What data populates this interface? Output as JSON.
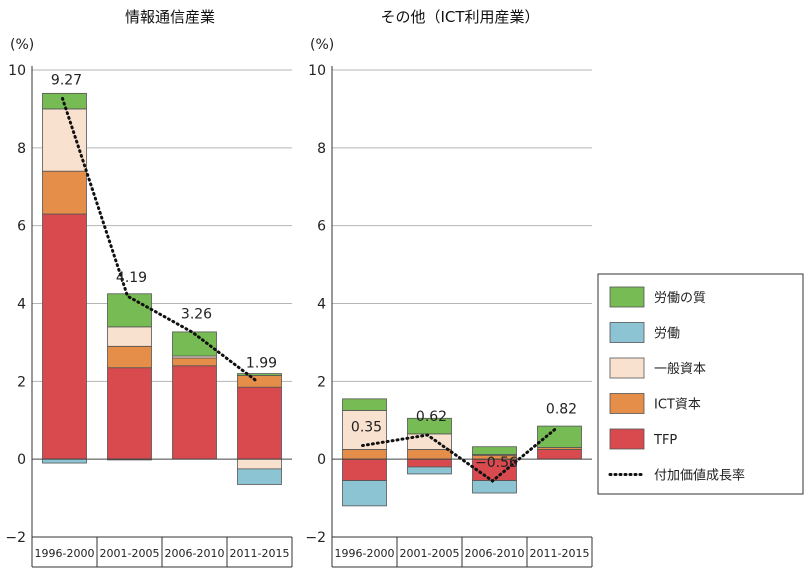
{
  "colors": {
    "labor_quality": "#77bb55",
    "labor": "#8dc4d4",
    "general_capital": "#f9e1d0",
    "ict_capital": "#e58e4a",
    "tfp": "#d84a4d",
    "line": "#111111"
  },
  "legend": {
    "items": [
      {
        "key": "labor_quality",
        "label": "労働の質"
      },
      {
        "key": "labor",
        "label": "労働"
      },
      {
        "key": "general_capital",
        "label": "一般資本"
      },
      {
        "key": "ict_capital",
        "label": "ICT資本"
      },
      {
        "key": "tfp",
        "label": "TFP"
      },
      {
        "key": "line",
        "label": "付加価値成長率"
      }
    ]
  },
  "chart_data": [
    {
      "type": "bar",
      "stacked": true,
      "title": "情報通信産業",
      "unit": "(%)",
      "ylim": [
        -2,
        10
      ],
      "yticks": [
        -2,
        0,
        2,
        4,
        6,
        8,
        10
      ],
      "ytick_labels": [
        "−2",
        "0",
        "2",
        "4",
        "6",
        "8",
        "10"
      ],
      "categories": [
        "1996-2000",
        "2001-2005",
        "2006-2010",
        "2011-2015"
      ],
      "grid": true,
      "series": [
        {
          "key": "tfp",
          "name": "TFP",
          "values": [
            6.3,
            2.35,
            2.4,
            1.85
          ]
        },
        {
          "key": "ict_capital",
          "name": "ICT資本",
          "values": [
            1.1,
            0.55,
            0.2,
            0.3
          ]
        },
        {
          "key": "general_capital",
          "name": "一般資本",
          "values": [
            1.6,
            0.5,
            0.05,
            -0.25
          ]
        },
        {
          "key": "labor",
          "name": "労働",
          "values": [
            -0.1,
            -0.02,
            0.0,
            -0.4
          ]
        },
        {
          "key": "labor_quality",
          "name": "労働の質",
          "values": [
            0.4,
            0.85,
            0.62,
            0.05
          ]
        }
      ],
      "line": {
        "key": "line",
        "name": "付加価値成長率",
        "values": [
          9.27,
          4.19,
          3.26,
          1.99
        ],
        "labels": [
          "9.27",
          "4.19",
          "3.26",
          "1.99"
        ]
      }
    },
    {
      "type": "bar",
      "stacked": true,
      "title": "その他（ICT利用産業）",
      "unit": "(%)",
      "ylim": [
        -2,
        10
      ],
      "yticks": [
        -2,
        0,
        2,
        4,
        6,
        8,
        10
      ],
      "ytick_labels": [
        "−2",
        "0",
        "2",
        "4",
        "6",
        "8",
        "10"
      ],
      "categories": [
        "1996-2000",
        "2001-2005",
        "2006-2010",
        "2011-2015"
      ],
      "grid": true,
      "series": [
        {
          "key": "tfp",
          "name": "TFP",
          "values": [
            -0.55,
            -0.2,
            -0.55,
            0.25
          ]
        },
        {
          "key": "ict_capital",
          "name": "ICT資本",
          "values": [
            0.25,
            0.25,
            0.1,
            0.05
          ]
        },
        {
          "key": "general_capital",
          "name": "一般資本",
          "values": [
            1.0,
            0.4,
            0.02,
            0.0
          ]
        },
        {
          "key": "labor",
          "name": "労働",
          "values": [
            -0.65,
            -0.18,
            -0.32,
            0.0
          ]
        },
        {
          "key": "labor_quality",
          "name": "労働の質",
          "values": [
            0.3,
            0.4,
            0.2,
            0.55
          ]
        }
      ],
      "line": {
        "key": "line",
        "name": "付加価値成長率",
        "values": [
          0.35,
          0.62,
          -0.56,
          0.82
        ],
        "labels": [
          "0.35",
          "0.62",
          "−0.56",
          "0.82"
        ]
      }
    }
  ]
}
